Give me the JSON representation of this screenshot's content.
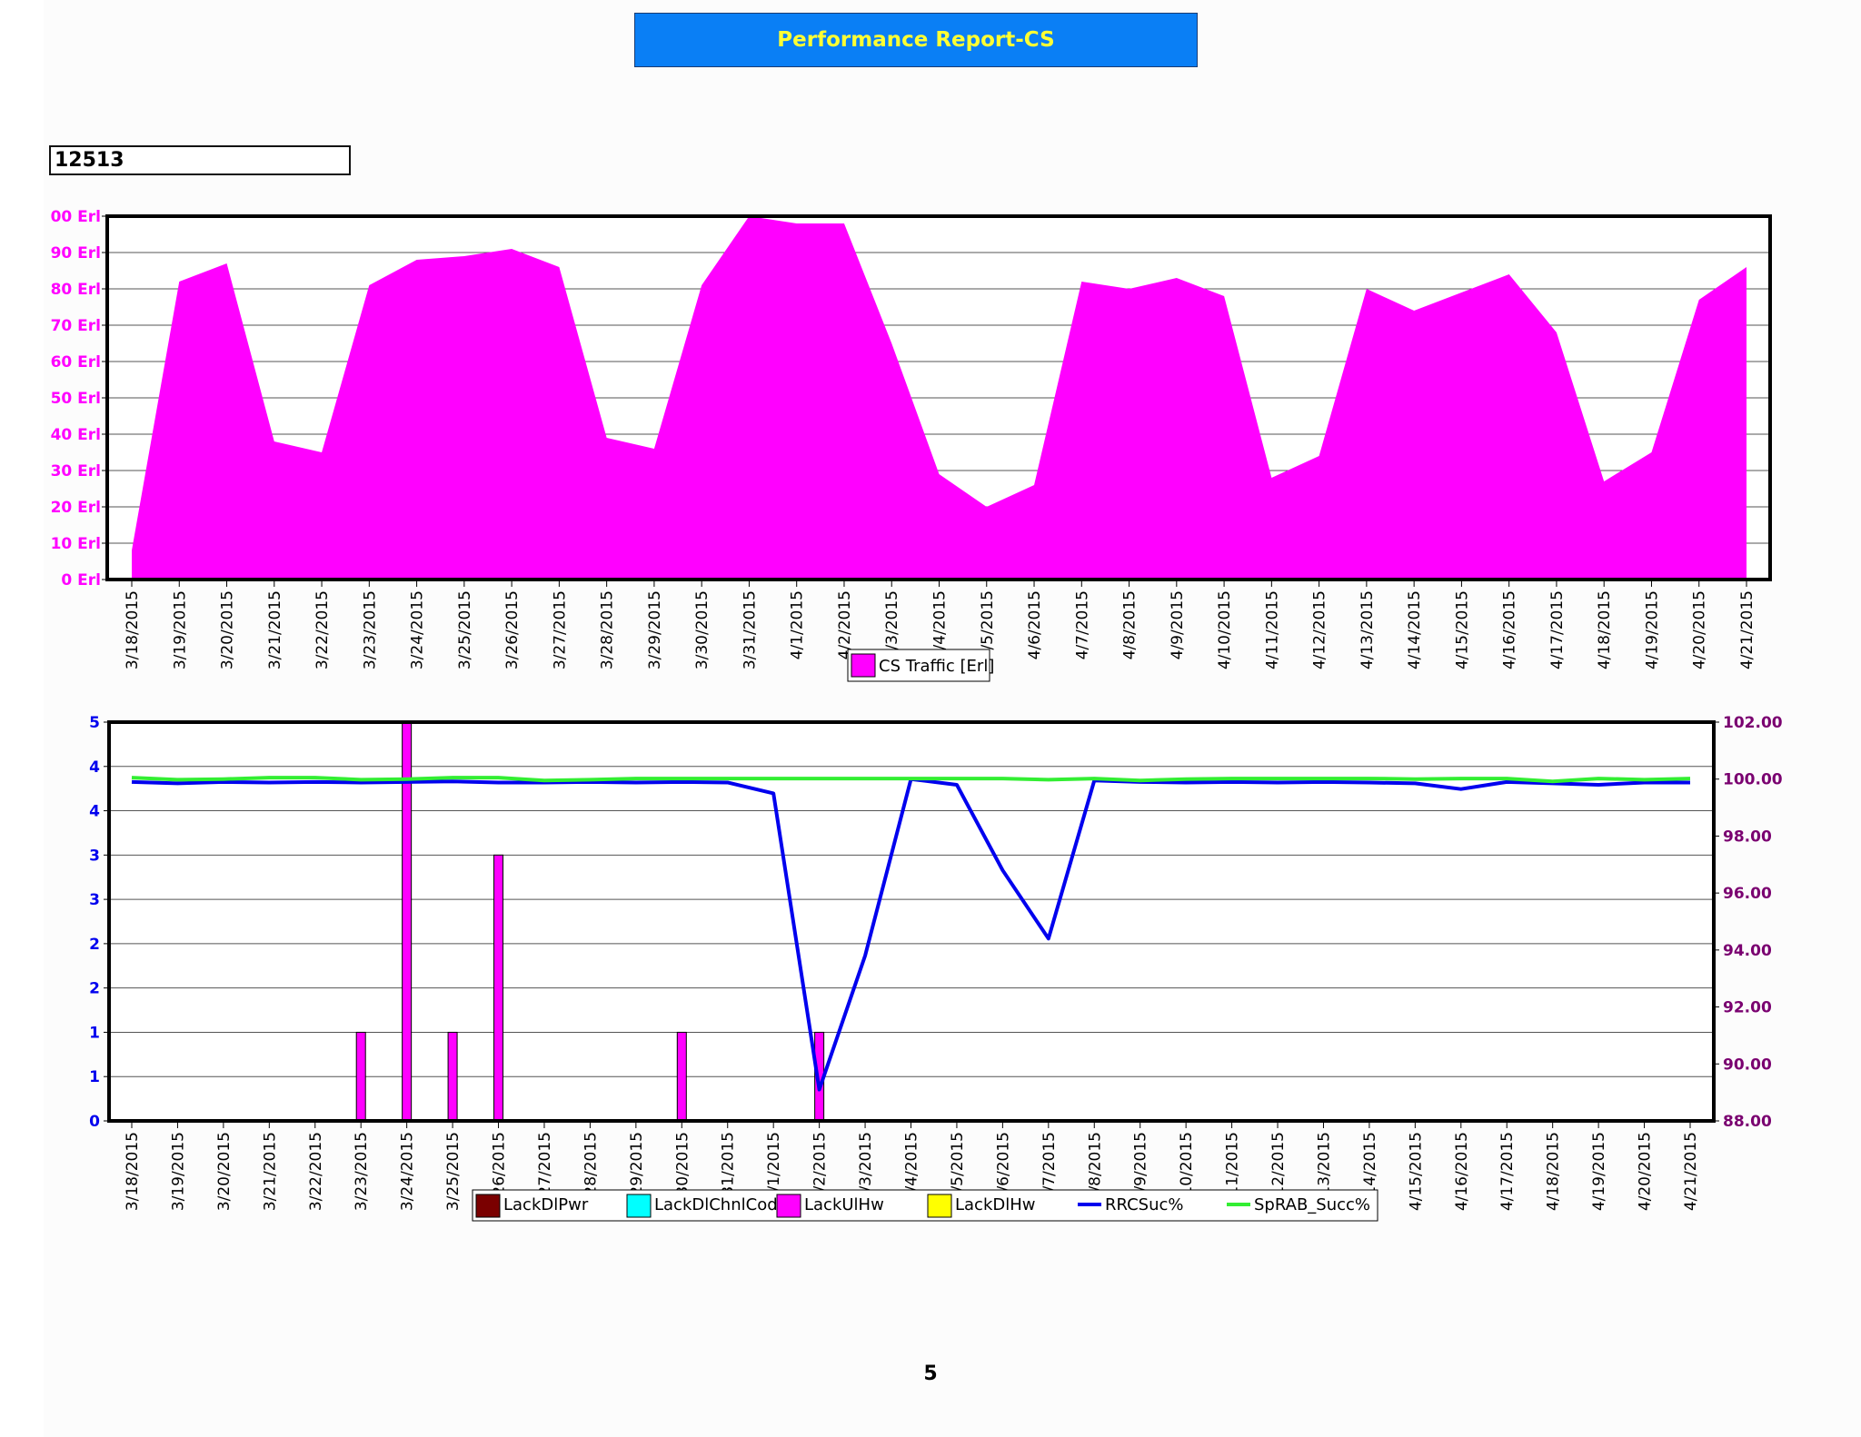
{
  "report": {
    "title": "Performance Report-CS",
    "cell_id": "12513",
    "page_number": "5"
  },
  "colors": {
    "title_bg": "#0a7ff5",
    "title_text": "#ffff33",
    "traffic_fill": "#ff00ff",
    "left_axis_text": "#0000ee",
    "right_axis_text": "#7a0070",
    "LackDlPwr": "#7a0000",
    "LackDlChnlCode": "#00ffff",
    "LackUlHw": "#ff00ff",
    "LackDlHw": "#ffff00",
    "RRCSuc": "#0000ee",
    "SpRAB_Succ": "#33ee33"
  },
  "chart_data": [
    {
      "type": "area",
      "x": [
        "3/18/2015",
        "3/19/2015",
        "3/20/2015",
        "3/21/2015",
        "3/22/2015",
        "3/23/2015",
        "3/24/2015",
        "3/25/2015",
        "3/26/2015",
        "3/27/2015",
        "3/28/2015",
        "3/29/2015",
        "3/30/2015",
        "3/31/2015",
        "4/1/2015",
        "4/2/2015",
        "4/3/2015",
        "4/4/2015",
        "4/5/2015",
        "4/6/2015",
        "4/7/2015",
        "4/8/2015",
        "4/9/2015",
        "4/10/2015",
        "4/11/2015",
        "4/12/2015",
        "4/13/2015",
        "4/14/2015",
        "4/15/2015",
        "4/16/2015",
        "4/17/2015",
        "4/18/2015",
        "4/19/2015",
        "4/20/2015",
        "4/21/2015"
      ],
      "x_tick_labels": [
        "3/18/2015",
        "3/19/2015",
        "3/20/2015",
        "3/21/2015",
        "3/22/2015",
        "3/23/2015",
        "3/24/2015",
        "3/25/2015",
        "3/26/2015",
        "3/27/2015",
        "3/28/2015",
        "3/29/2015",
        "3/30/2015",
        "3/31/2015",
        "4/1/2015",
        "4/2/2015",
        "/3/2015",
        "/4/2015",
        "/5/2015",
        "4/6/2015",
        "4/7/2015",
        "4/8/2015",
        "4/9/2015",
        "4/10/2015",
        "4/11/2015",
        "4/12/2015",
        "4/13/2015",
        "4/14/2015",
        "4/15/2015",
        "4/16/2015",
        "4/17/2015",
        "4/18/2015",
        "4/19/2015",
        "4/20/2015",
        "4/21/2015"
      ],
      "series": [
        {
          "name": "CS Traffic [Erl]",
          "values": [
            8,
            82,
            87,
            38,
            35,
            81,
            88,
            89,
            91,
            86,
            39,
            36,
            81,
            100,
            98,
            98,
            65,
            29,
            20,
            26,
            82,
            80,
            83,
            78,
            28,
            34,
            80,
            74,
            79,
            84,
            68,
            27,
            35,
            77,
            86
          ]
        }
      ],
      "y_tick_labels": [
        "0 Erl",
        "10 Erl",
        "20 Erl",
        "30 Erl",
        "40 Erl",
        "50 Erl",
        "60 Erl",
        "70 Erl",
        "80 Erl",
        "90 Erl",
        "00 Erl"
      ],
      "ylim": [
        0,
        100
      ],
      "grid": true,
      "legend": "bottom-center"
    },
    {
      "type": "bar",
      "x": [
        "3/18/2015",
        "3/19/2015",
        "3/20/2015",
        "3/21/2015",
        "3/22/2015",
        "3/23/2015",
        "3/24/2015",
        "3/25/2015",
        "3/26/2015",
        "3/27/2015",
        "3/28/2015",
        "3/29/2015",
        "3/30/2015",
        "3/31/2015",
        "4/1/2015",
        "4/2/2015",
        "4/3/2015",
        "4/4/2015",
        "4/5/2015",
        "4/6/2015",
        "4/7/2015",
        "4/8/2015",
        "4/9/2015",
        "4/10/2015",
        "4/11/2015",
        "4/12/2015",
        "4/13/2015",
        "4/14/2015",
        "4/15/2015",
        "4/16/2015",
        "4/17/2015",
        "4/18/2015",
        "4/19/2015",
        "4/20/2015",
        "4/21/2015"
      ],
      "x_tick_labels": [
        "3/18/2015",
        "3/19/2015",
        "3/20/2015",
        "3/21/2015",
        "3/22/2015",
        "3/23/2015",
        "3/24/2015",
        "3/25/2015",
        "26/2015",
        "27/2015",
        "28/2015",
        "29/2015",
        "30/2015",
        "31/2015",
        "/1/2015",
        "/2/2015",
        "/3/2015",
        "/4/2015",
        "/5/2015",
        "/6/2015",
        "/7/2015",
        "/8/2015",
        "/9/2015",
        "10/2015",
        "11/2015",
        "12/2015",
        "13/2015",
        "14/2015",
        "4/15/2015",
        "4/16/2015",
        "4/17/2015",
        "4/18/2015",
        "4/19/2015",
        "4/20/2015",
        "4/21/2015"
      ],
      "bars": [
        {
          "name": "LackDlPwr",
          "values": [
            0,
            0,
            0,
            0,
            0,
            0,
            0,
            0,
            0,
            0,
            0,
            0,
            0,
            0,
            0,
            0,
            0,
            0,
            0,
            0,
            0,
            0,
            0,
            0,
            0,
            0,
            0,
            0,
            0,
            0,
            0,
            0,
            0,
            0,
            0
          ]
        },
        {
          "name": "LackDlChnlCode",
          "values": [
            0,
            0,
            0,
            0,
            0,
            0,
            0,
            0,
            0,
            0,
            0,
            0,
            0,
            0,
            0,
            0,
            0,
            0,
            0,
            0,
            0,
            0,
            0,
            0,
            0,
            0,
            0,
            0,
            0,
            0,
            0,
            0,
            0,
            0,
            0
          ]
        },
        {
          "name": "LackUlHw",
          "values": [
            0,
            0,
            0,
            0,
            0,
            1,
            4.5,
            1,
            3,
            0,
            0,
            0,
            1,
            0,
            0,
            1,
            0,
            0,
            0,
            0,
            0,
            0,
            0,
            0,
            0,
            0,
            0,
            0,
            0,
            0,
            0,
            0,
            0,
            0,
            0
          ]
        },
        {
          "name": "LackDlHw",
          "values": [
            0,
            0,
            0,
            0,
            0,
            0,
            0,
            0,
            0,
            0,
            0,
            0,
            0,
            0,
            0,
            0,
            0,
            0,
            0,
            0,
            0,
            0,
            0,
            0,
            0,
            0,
            0,
            0,
            0,
            0,
            0,
            0,
            0,
            0,
            0
          ]
        }
      ],
      "lines": [
        {
          "name": "RRCSuc%",
          "axis": "right",
          "values": [
            99.9,
            99.85,
            99.9,
            99.88,
            99.9,
            99.88,
            99.9,
            99.92,
            99.88,
            99.88,
            99.9,
            99.88,
            99.9,
            99.88,
            99.5,
            89.1,
            93.8,
            100.0,
            99.8,
            96.8,
            94.4,
            99.95,
            99.9,
            99.88,
            99.9,
            99.88,
            99.9,
            99.88,
            99.85,
            99.65,
            99.9,
            99.85,
            99.8,
            99.88,
            99.88
          ]
        },
        {
          "name": "SpRAB_Succ%",
          "axis": "right",
          "values": [
            100.05,
            99.98,
            100.0,
            100.05,
            100.05,
            99.98,
            100.0,
            100.05,
            100.05,
            99.95,
            99.98,
            100.02,
            100.02,
            100.02,
            100.02,
            100.02,
            100.02,
            100.02,
            100.02,
            100.02,
            99.98,
            100.02,
            99.95,
            100.0,
            100.02,
            100.02,
            100.02,
            100.02,
            100.0,
            100.02,
            100.02,
            99.92,
            100.02,
            99.98,
            100.02
          ]
        }
      ],
      "y_left_tick_labels": [
        "0",
        "1",
        "1",
        "2",
        "2",
        "3",
        "3",
        "4",
        "4",
        "5"
      ],
      "ylim_left": [
        0,
        4.5
      ],
      "y_right_tick_labels": [
        "88.00",
        "90.00",
        "92.00",
        "94.00",
        "96.00",
        "98.00",
        "100.00",
        "102.00"
      ],
      "ylim_right": [
        88,
        102
      ],
      "grid": true,
      "legend": "bottom-center"
    }
  ]
}
